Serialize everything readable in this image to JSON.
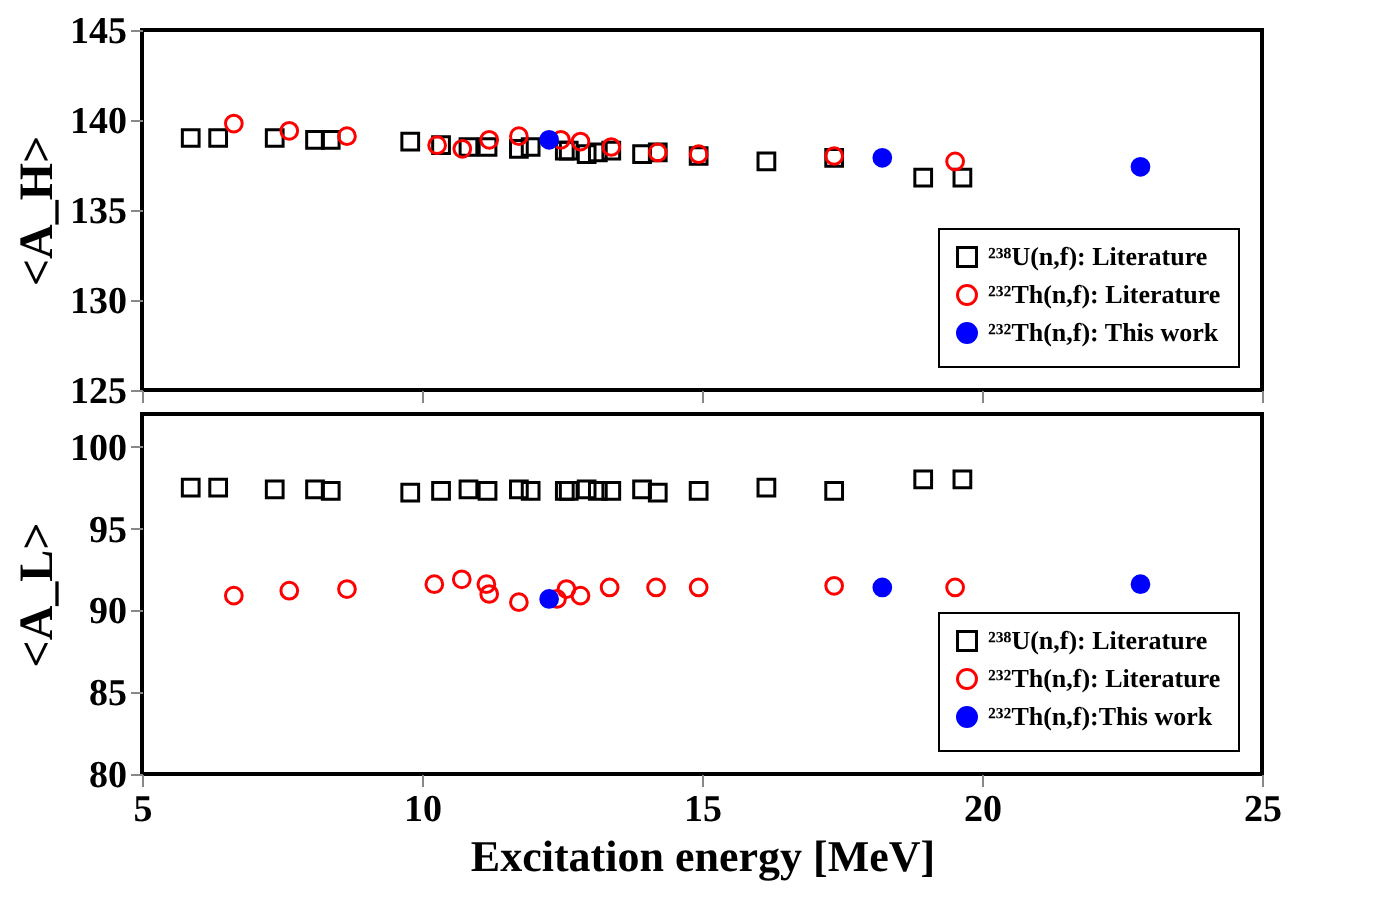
{
  "chart_data": [
    {
      "type": "scatter",
      "ylabel": "<A_H>",
      "xlim": [
        5,
        25
      ],
      "xticks": [
        5,
        10,
        15,
        20,
        25
      ],
      "ylim": [
        125,
        145
      ],
      "yticks": [
        125,
        130,
        135,
        140,
        145
      ],
      "tick_labels": "y",
      "grid": false,
      "legend": "bottom right",
      "series": [
        {
          "name": "²³⁸U(n,f): Literature",
          "color": "#000000",
          "marker": "square",
          "x": [
            5.87,
            6.36,
            7.37,
            8.09,
            8.37,
            9.79,
            10.34,
            10.83,
            11.17,
            11.73,
            11.94,
            12.55,
            12.62,
            12.94,
            13.14,
            13.38,
            13.93,
            14.21,
            14.94,
            16.15,
            17.36,
            18.95,
            19.65
          ],
          "values": [
            139.0,
            139.0,
            139.0,
            138.9,
            138.9,
            138.8,
            138.6,
            138.5,
            138.5,
            138.4,
            138.5,
            138.3,
            138.3,
            138.1,
            138.2,
            138.3,
            138.1,
            138.2,
            138.0,
            137.7,
            137.9,
            136.8,
            136.8
          ]
        },
        {
          "name": "²³²Th(n,f): Literature",
          "color": "#ff0000",
          "marker": "circle",
          "x": [
            6.64,
            7.63,
            8.66,
            10.27,
            10.72,
            11.2,
            11.73,
            12.48,
            12.83,
            13.38,
            14.21,
            14.94,
            17.36,
            19.52
          ],
          "values": [
            139.8,
            139.4,
            139.1,
            138.6,
            138.4,
            138.9,
            139.1,
            138.9,
            138.8,
            138.5,
            138.2,
            138.1,
            138.0,
            137.7
          ]
        },
        {
          "name": "²³²Th(n,f): This work",
          "color": "#0000ff",
          "marker": "circle",
          "x": [
            12.27,
            18.22,
            22.83
          ],
          "values": [
            138.9,
            137.9,
            137.4
          ]
        }
      ]
    },
    {
      "type": "scatter",
      "ylabel": "<A_L>",
      "xlabel": "Excitation energy [MeV]",
      "xlim": [
        5,
        25
      ],
      "xticks": [
        5,
        10,
        15,
        20,
        25
      ],
      "ylim": [
        80,
        102
      ],
      "yticks": [
        80,
        85,
        90,
        95,
        100
      ],
      "grid": false,
      "legend": "bottom right",
      "series": [
        {
          "name": "²³⁸U(n,f): Literature",
          "color": "#000000",
          "marker": "square",
          "x": [
            5.87,
            6.36,
            7.37,
            8.09,
            8.37,
            9.79,
            10.34,
            10.83,
            11.17,
            11.73,
            11.94,
            12.55,
            12.62,
            12.94,
            13.14,
            13.38,
            13.93,
            14.21,
            14.94,
            16.15,
            17.36,
            18.95,
            19.65
          ],
          "values": [
            97.5,
            97.5,
            97.4,
            97.4,
            97.3,
            97.2,
            97.3,
            97.4,
            97.3,
            97.4,
            97.3,
            97.3,
            97.3,
            97.4,
            97.3,
            97.3,
            97.4,
            97.2,
            97.3,
            97.5,
            97.3,
            98.0,
            98.0
          ]
        },
        {
          "name": "²³²Th(n,f): Literature",
          "color": "#ff0000",
          "marker": "circle",
          "x": [
            6.64,
            7.63,
            8.66,
            10.22,
            10.71,
            11.15,
            11.2,
            11.73,
            12.41,
            12.58,
            12.83,
            13.35,
            14.18,
            14.94,
            17.36,
            19.52
          ],
          "values": [
            90.9,
            91.2,
            91.3,
            91.6,
            91.9,
            91.6,
            91.0,
            90.5,
            90.7,
            91.3,
            90.9,
            91.4,
            91.4,
            91.4,
            91.5,
            91.4
          ]
        },
        {
          "name": "²³²Th(n,f):This work",
          "color": "#0000ff",
          "marker": "circle",
          "x": [
            12.27,
            18.22,
            22.83
          ],
          "values": [
            90.7,
            91.4,
            91.6
          ]
        }
      ]
    }
  ]
}
